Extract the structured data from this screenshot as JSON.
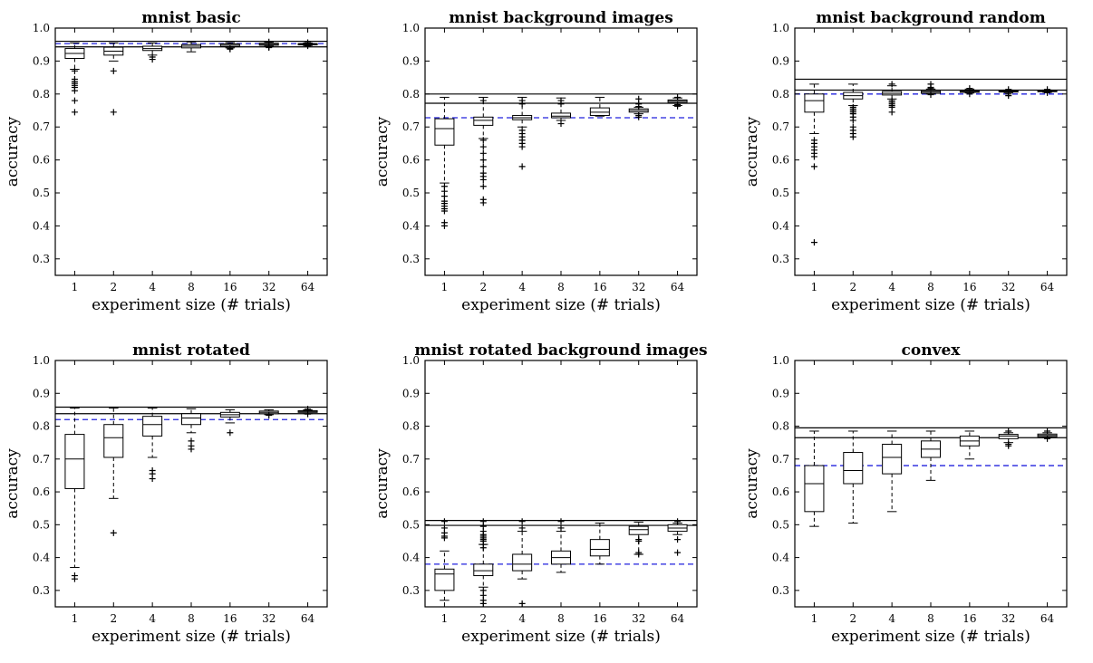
{
  "chart_data": [
    {
      "type": "box",
      "title": "mnist basic",
      "xlabel": "experiment size (# trials)",
      "ylabel": "accuracy",
      "ylim": [
        0.25,
        1.0
      ],
      "yticks": [
        "0.3",
        "0.4",
        "0.5",
        "0.6",
        "0.7",
        "0.8",
        "0.9",
        "1.0"
      ],
      "categories": [
        "1",
        "2",
        "4",
        "8",
        "16",
        "32",
        "64"
      ],
      "reference_solid": [
        0.96,
        0.943
      ],
      "reference_dashed": 0.953,
      "boxes": [
        {
          "whislo": 0.875,
          "q1": 0.908,
          "med": 0.923,
          "q3": 0.938,
          "whishi": 0.955,
          "fliers": [
            0.87,
            0.845,
            0.838,
            0.832,
            0.826,
            0.82,
            0.81,
            0.78,
            0.745
          ]
        },
        {
          "whislo": 0.9,
          "q1": 0.918,
          "med": 0.93,
          "q3": 0.942,
          "whishi": 0.955,
          "fliers": [
            0.87,
            0.745
          ]
        },
        {
          "whislo": 0.918,
          "q1": 0.932,
          "med": 0.938,
          "q3": 0.945,
          "whishi": 0.955,
          "fliers": [
            0.912,
            0.905
          ]
        },
        {
          "whislo": 0.928,
          "q1": 0.94,
          "med": 0.945,
          "q3": 0.95,
          "whishi": 0.958,
          "fliers": []
        },
        {
          "whislo": 0.94,
          "q1": 0.944,
          "med": 0.948,
          "q3": 0.952,
          "whishi": 0.956,
          "fliers": [
            0.938,
            0.936
          ]
        },
        {
          "whislo": 0.945,
          "q1": 0.948,
          "med": 0.951,
          "q3": 0.954,
          "whishi": 0.957,
          "fliers": [
            0.958,
            0.943,
            0.941
          ]
        },
        {
          "whislo": 0.947,
          "q1": 0.949,
          "med": 0.951,
          "q3": 0.953,
          "whishi": 0.955,
          "fliers": [
            0.956,
            0.946
          ]
        }
      ]
    },
    {
      "type": "box",
      "title": "mnist background images",
      "xlabel": "experiment size (# trials)",
      "ylabel": "accuracy",
      "ylim": [
        0.25,
        1.0
      ],
      "yticks": [
        "0.3",
        "0.4",
        "0.5",
        "0.6",
        "0.7",
        "0.8",
        "0.9",
        "1.0"
      ],
      "categories": [
        "1",
        "2",
        "4",
        "8",
        "16",
        "32",
        "64"
      ],
      "reference_solid": [
        0.8,
        0.772
      ],
      "reference_dashed": 0.728,
      "boxes": [
        {
          "whislo": 0.53,
          "q1": 0.645,
          "med": 0.695,
          "q3": 0.725,
          "whishi": 0.79,
          "fliers": [
            0.52,
            0.505,
            0.49,
            0.475,
            0.468,
            0.46,
            0.452,
            0.445,
            0.41,
            0.4
          ]
        },
        {
          "whislo": 0.665,
          "q1": 0.705,
          "med": 0.72,
          "q3": 0.73,
          "whishi": 0.79,
          "fliers": [
            0.78,
            0.66,
            0.64,
            0.62,
            0.6,
            0.58,
            0.56,
            0.55,
            0.54,
            0.52,
            0.48,
            0.47
          ]
        },
        {
          "whislo": 0.7,
          "q1": 0.722,
          "med": 0.728,
          "q3": 0.735,
          "whishi": 0.79,
          "fliers": [
            0.78,
            0.77,
            0.69,
            0.68,
            0.67,
            0.66,
            0.65,
            0.64,
            0.58
          ]
        },
        {
          "whislo": 0.72,
          "q1": 0.728,
          "med": 0.733,
          "q3": 0.742,
          "whishi": 0.788,
          "fliers": [
            0.78,
            0.77,
            0.71
          ]
        },
        {
          "whislo": 0.733,
          "q1": 0.735,
          "med": 0.745,
          "q3": 0.758,
          "whishi": 0.79,
          "fliers": []
        },
        {
          "whislo": 0.74,
          "q1": 0.745,
          "med": 0.75,
          "q3": 0.755,
          "whishi": 0.76,
          "fliers": [
            0.785,
            0.77,
            0.762,
            0.735,
            0.73
          ]
        },
        {
          "whislo": 0.765,
          "q1": 0.775,
          "med": 0.78,
          "q3": 0.782,
          "whishi": 0.788,
          "fliers": [
            0.79,
            0.768,
            0.763
          ]
        }
      ]
    },
    {
      "type": "box",
      "title": "mnist background random",
      "xlabel": "experiment size (# trials)",
      "ylabel": "accuracy",
      "ylim": [
        0.25,
        1.0
      ],
      "yticks": [
        "0.3",
        "0.4",
        "0.5",
        "0.6",
        "0.7",
        "0.8",
        "0.9",
        "1.0"
      ],
      "categories": [
        "1",
        "2",
        "4",
        "8",
        "16",
        "32",
        "64"
      ],
      "reference_solid": [
        0.845,
        0.812
      ],
      "reference_dashed": 0.8,
      "boxes": [
        {
          "whislo": 0.68,
          "q1": 0.745,
          "med": 0.78,
          "q3": 0.8,
          "whishi": 0.83,
          "fliers": [
            0.66,
            0.65,
            0.64,
            0.63,
            0.62,
            0.61,
            0.58,
            0.35
          ]
        },
        {
          "whislo": 0.765,
          "q1": 0.785,
          "med": 0.795,
          "q3": 0.805,
          "whishi": 0.83,
          "fliers": [
            0.76,
            0.755,
            0.75,
            0.745,
            0.74,
            0.73,
            0.72,
            0.7,
            0.69,
            0.68,
            0.67
          ]
        },
        {
          "whislo": 0.785,
          "q1": 0.797,
          "med": 0.802,
          "q3": 0.808,
          "whishi": 0.825,
          "fliers": [
            0.83,
            0.78,
            0.775,
            0.77,
            0.765,
            0.76,
            0.745
          ]
        },
        {
          "whislo": 0.8,
          "q1": 0.802,
          "med": 0.806,
          "q3": 0.81,
          "whishi": 0.815,
          "fliers": [
            0.83,
            0.82,
            0.818,
            0.798
          ]
        },
        {
          "whislo": 0.803,
          "q1": 0.805,
          "med": 0.808,
          "q3": 0.81,
          "whishi": 0.815,
          "fliers": [
            0.817,
            0.8
          ]
        },
        {
          "whislo": 0.804,
          "q1": 0.806,
          "med": 0.808,
          "q3": 0.81,
          "whishi": 0.812,
          "fliers": [
            0.814,
            0.8,
            0.795
          ]
        },
        {
          "whislo": 0.805,
          "q1": 0.807,
          "med": 0.808,
          "q3": 0.81,
          "whishi": 0.812,
          "fliers": [
            0.814,
            0.804
          ]
        }
      ]
    },
    {
      "type": "box",
      "title": "mnist rotated",
      "xlabel": "experiment size (# trials)",
      "ylabel": "accuracy",
      "ylim": [
        0.25,
        1.0
      ],
      "yticks": [
        "0.3",
        "0.4",
        "0.5",
        "0.6",
        "0.7",
        "0.8",
        "0.9",
        "1.0"
      ],
      "categories": [
        "1",
        "2",
        "4",
        "8",
        "16",
        "32",
        "64"
      ],
      "reference_solid": [
        0.858,
        0.838
      ],
      "reference_dashed": 0.82,
      "boxes": [
        {
          "whislo": 0.37,
          "q1": 0.61,
          "med": 0.7,
          "q3": 0.775,
          "whishi": 0.855,
          "fliers": [
            0.345,
            0.335
          ]
        },
        {
          "whislo": 0.58,
          "q1": 0.705,
          "med": 0.765,
          "q3": 0.805,
          "whishi": 0.855,
          "fliers": [
            0.475
          ]
        },
        {
          "whislo": 0.705,
          "q1": 0.77,
          "med": 0.805,
          "q3": 0.83,
          "whishi": 0.855,
          "fliers": [
            0.665,
            0.655,
            0.64
          ]
        },
        {
          "whislo": 0.78,
          "q1": 0.805,
          "med": 0.825,
          "q3": 0.838,
          "whishi": 0.853,
          "fliers": [
            0.755,
            0.74,
            0.73
          ]
        },
        {
          "whislo": 0.81,
          "q1": 0.828,
          "med": 0.835,
          "q3": 0.842,
          "whishi": 0.85,
          "fliers": [
            0.78
          ]
        },
        {
          "whislo": 0.835,
          "q1": 0.838,
          "med": 0.842,
          "q3": 0.846,
          "whishi": 0.85,
          "fliers": [
            0.833
          ]
        },
        {
          "whislo": 0.838,
          "q1": 0.842,
          "med": 0.845,
          "q3": 0.847,
          "whishi": 0.85,
          "fliers": [
            0.837,
            0.852
          ]
        }
      ]
    },
    {
      "type": "box",
      "title": "mnist rotated background images",
      "xlabel": "experiment size (# trials)",
      "ylabel": "accuracy",
      "ylim": [
        0.25,
        1.0
      ],
      "yticks": [
        "0.3",
        "0.4",
        "0.5",
        "0.6",
        "0.7",
        "0.8",
        "0.9",
        "1.0"
      ],
      "categories": [
        "1",
        "2",
        "4",
        "8",
        "16",
        "32",
        "64"
      ],
      "reference_solid": [
        0.513,
        0.498
      ],
      "reference_dashed": 0.38,
      "boxes": [
        {
          "whislo": 0.27,
          "q1": 0.3,
          "med": 0.35,
          "q3": 0.365,
          "whishi": 0.42,
          "fliers": [
            0.51,
            0.49,
            0.475,
            0.465,
            0.46
          ]
        },
        {
          "whislo": 0.31,
          "q1": 0.345,
          "med": 0.36,
          "q3": 0.38,
          "whishi": 0.44,
          "fliers": [
            0.51,
            0.495,
            0.48,
            0.47,
            0.465,
            0.46,
            0.455,
            0.45,
            0.44,
            0.43,
            0.3,
            0.285,
            0.27,
            0.26
          ]
        },
        {
          "whislo": 0.335,
          "q1": 0.36,
          "med": 0.38,
          "q3": 0.41,
          "whishi": 0.48,
          "fliers": [
            0.51,
            0.49,
            0.26
          ]
        },
        {
          "whislo": 0.355,
          "q1": 0.38,
          "med": 0.4,
          "q3": 0.42,
          "whishi": 0.48,
          "fliers": [
            0.51,
            0.49
          ]
        },
        {
          "whislo": 0.38,
          "q1": 0.405,
          "med": 0.425,
          "q3": 0.455,
          "whishi": 0.505,
          "fliers": []
        },
        {
          "whislo": 0.41,
          "q1": 0.47,
          "med": 0.485,
          "q3": 0.495,
          "whishi": 0.508,
          "fliers": [
            0.455,
            0.45,
            0.415,
            0.41
          ]
        },
        {
          "whislo": 0.47,
          "q1": 0.48,
          "med": 0.49,
          "q3": 0.5,
          "whishi": 0.505,
          "fliers": [
            0.51,
            0.455,
            0.415
          ]
        }
      ]
    },
    {
      "type": "box",
      "title": "convex",
      "xlabel": "experiment size (# trials)",
      "ylabel": "accuracy",
      "ylim": [
        0.25,
        1.0
      ],
      "yticks": [
        "0.3",
        "0.4",
        "0.5",
        "0.6",
        "0.7",
        "0.8",
        "0.9",
        "1.0"
      ],
      "categories": [
        "1",
        "2",
        "4",
        "8",
        "16",
        "32",
        "64"
      ],
      "reference_solid": [
        0.795,
        0.765
      ],
      "reference_dashed": 0.68,
      "boxes": [
        {
          "whislo": 0.495,
          "q1": 0.54,
          "med": 0.625,
          "q3": 0.68,
          "whishi": 0.785,
          "fliers": []
        },
        {
          "whislo": 0.505,
          "q1": 0.625,
          "med": 0.665,
          "q3": 0.72,
          "whishi": 0.785,
          "fliers": []
        },
        {
          "whislo": 0.54,
          "q1": 0.655,
          "med": 0.705,
          "q3": 0.745,
          "whishi": 0.785,
          "fliers": []
        },
        {
          "whislo": 0.635,
          "q1": 0.705,
          "med": 0.73,
          "q3": 0.755,
          "whishi": 0.785,
          "fliers": []
        },
        {
          "whislo": 0.7,
          "q1": 0.74,
          "med": 0.755,
          "q3": 0.77,
          "whishi": 0.785,
          "fliers": []
        },
        {
          "whislo": 0.75,
          "q1": 0.762,
          "med": 0.77,
          "q3": 0.775,
          "whishi": 0.78,
          "fliers": [
            0.785,
            0.745,
            0.74
          ]
        },
        {
          "whislo": 0.765,
          "q1": 0.768,
          "med": 0.772,
          "q3": 0.776,
          "whishi": 0.78,
          "fliers": [
            0.785,
            0.762
          ]
        }
      ]
    }
  ],
  "colors": {
    "axis": "#000000",
    "box": "#000000",
    "dashed_reference": "#2222dd"
  }
}
